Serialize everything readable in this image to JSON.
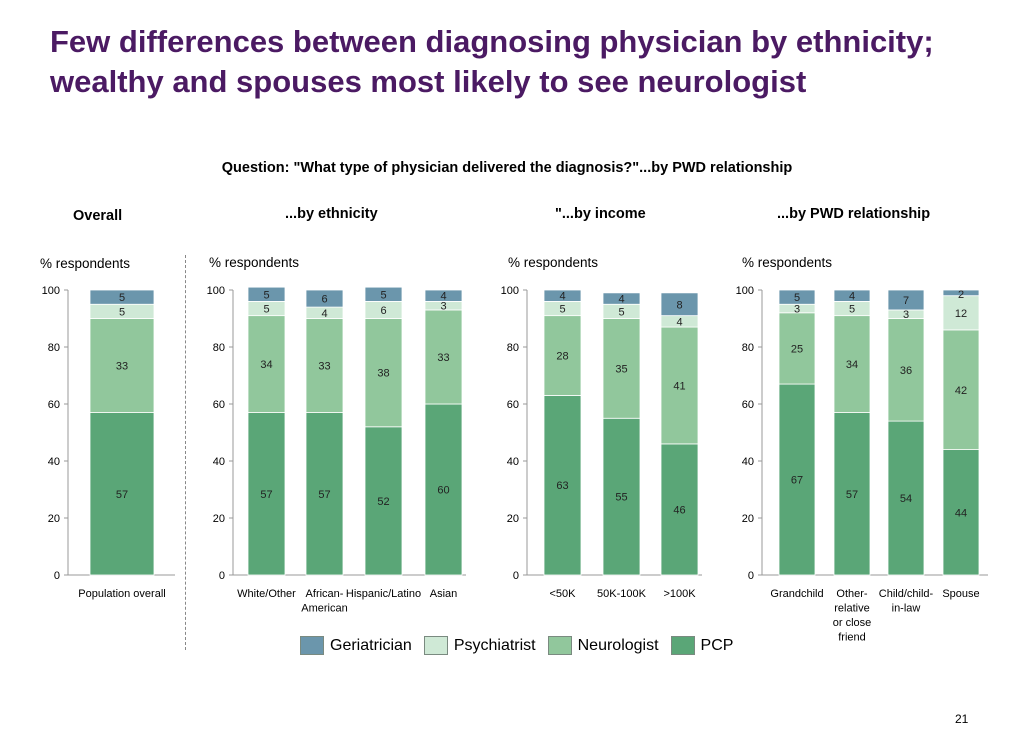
{
  "title": "Few differences between diagnosing physician by ethnicity; wealthy and spouses most likely to see neurologist",
  "question": "Question: \"What type of physician delivered the diagnosis?\"...by PWD relationship",
  "page_number": "21",
  "colors": {
    "geriatrician": "#6b96ac",
    "psychiatrist": "#cfe9d6",
    "neurologist": "#91c79c",
    "pcp": "#5aa677"
  },
  "legend": [
    "Geriatrician",
    "Psychiatrist",
    "Neurologist",
    "PCP"
  ],
  "chart_data": [
    {
      "type": "bar",
      "stacked": true,
      "title": "Overall",
      "ylabel": "% respondents",
      "ylim": [
        0,
        100
      ],
      "yticks": [
        0,
        20,
        40,
        60,
        80,
        100
      ],
      "categories": [
        [
          "Population overall"
        ]
      ],
      "series": [
        {
          "name": "PCP",
          "values": [
            57
          ]
        },
        {
          "name": "Neurologist",
          "values": [
            33
          ]
        },
        {
          "name": "Psychiatrist",
          "values": [
            5
          ]
        },
        {
          "name": "Geriatrician",
          "values": [
            5
          ]
        }
      ]
    },
    {
      "type": "bar",
      "stacked": true,
      "title": "...by ethnicity",
      "ylabel": "% respondents",
      "ylim": [
        0,
        100
      ],
      "yticks": [
        0,
        20,
        40,
        60,
        80,
        100
      ],
      "categories": [
        [
          "White/Other"
        ],
        [
          "African-",
          "American"
        ],
        [
          "Hispanic/Latino"
        ],
        [
          "Asian"
        ]
      ],
      "series": [
        {
          "name": "PCP",
          "values": [
            57,
            57,
            52,
            60
          ]
        },
        {
          "name": "Neurologist",
          "values": [
            34,
            33,
            38,
            33
          ]
        },
        {
          "name": "Psychiatrist",
          "values": [
            5,
            4,
            6,
            3
          ]
        },
        {
          "name": "Geriatrician",
          "values": [
            5,
            6,
            5,
            4
          ]
        }
      ]
    },
    {
      "type": "bar",
      "stacked": true,
      "title": "\"...by income",
      "ylabel": "% respondents",
      "ylim": [
        0,
        100
      ],
      "yticks": [
        0,
        20,
        40,
        60,
        80,
        100
      ],
      "categories": [
        [
          "<50K"
        ],
        [
          "50K-100K"
        ],
        [
          ">100K"
        ]
      ],
      "series": [
        {
          "name": "PCP",
          "values": [
            63,
            55,
            46
          ]
        },
        {
          "name": "Neurologist",
          "values": [
            28,
            35,
            41
          ]
        },
        {
          "name": "Psychiatrist",
          "values": [
            5,
            5,
            4
          ]
        },
        {
          "name": "Geriatrician",
          "values": [
            4,
            4,
            8
          ]
        }
      ]
    },
    {
      "type": "bar",
      "stacked": true,
      "title": "...by PWD relationship",
      "ylabel": "% respondents",
      "ylim": [
        0,
        100
      ],
      "yticks": [
        0,
        20,
        40,
        60,
        80,
        100
      ],
      "categories": [
        [
          "Grandchild"
        ],
        [
          "Other-",
          "relative",
          "or close",
          "friend"
        ],
        [
          "Child/child-",
          "in-law"
        ],
        [
          "Spouse"
        ]
      ],
      "series": [
        {
          "name": "PCP",
          "values": [
            67,
            57,
            54,
            44
          ]
        },
        {
          "name": "Neurologist",
          "values": [
            25,
            34,
            36,
            42
          ]
        },
        {
          "name": "Psychiatrist",
          "values": [
            3,
            5,
            3,
            12
          ]
        },
        {
          "name": "Geriatrician",
          "values": [
            5,
            4,
            7,
            2
          ]
        }
      ]
    }
  ]
}
